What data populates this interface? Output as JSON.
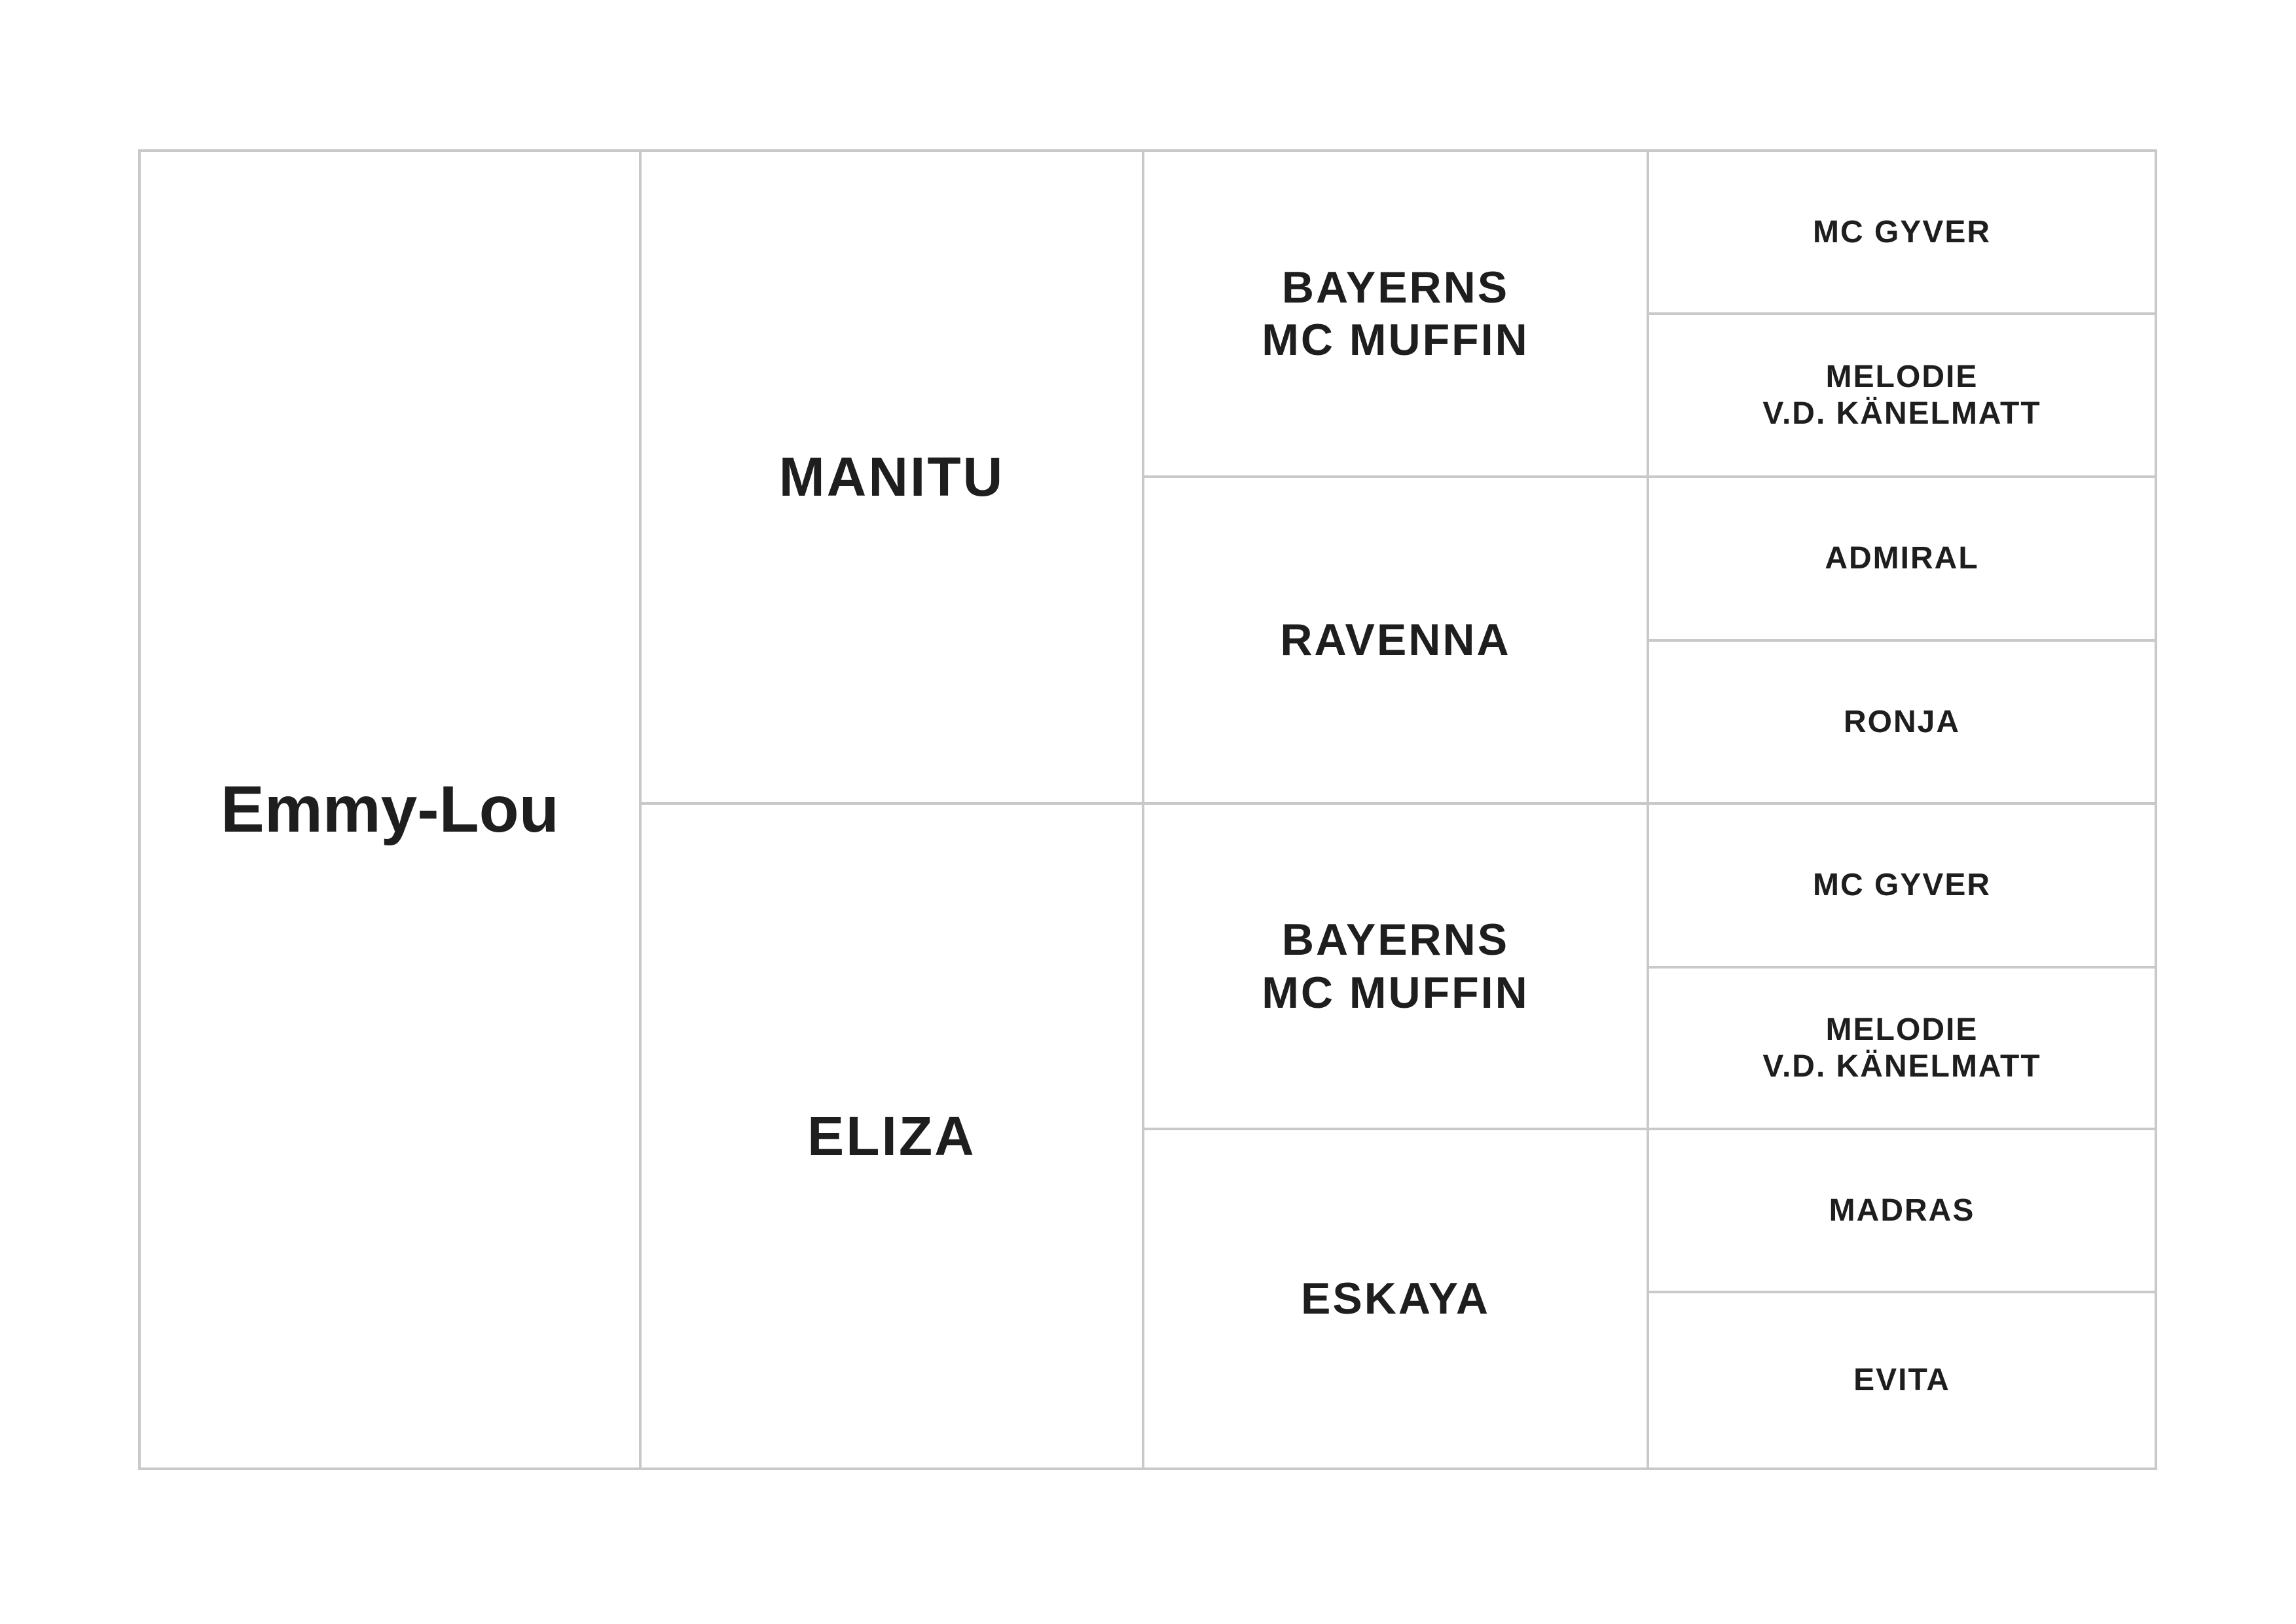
{
  "pedigree": {
    "subject": "Emmy-Lou",
    "parents": [
      "MANITU",
      "ELIZA"
    ],
    "grandparents": [
      "BAYERNS\nMC MUFFIN",
      "RAVENNA",
      "BAYERNS\nMC MUFFIN",
      "ESKAYA"
    ],
    "great_grandparents": [
      "MC GYVER",
      "MELODIE\nV.D. KÄNELMATT",
      "ADMIRAL",
      "RONJA",
      "MC GYVER",
      "MELODIE\nV.D. KÄNELMATT",
      "MADRAS",
      "EVITA"
    ]
  }
}
